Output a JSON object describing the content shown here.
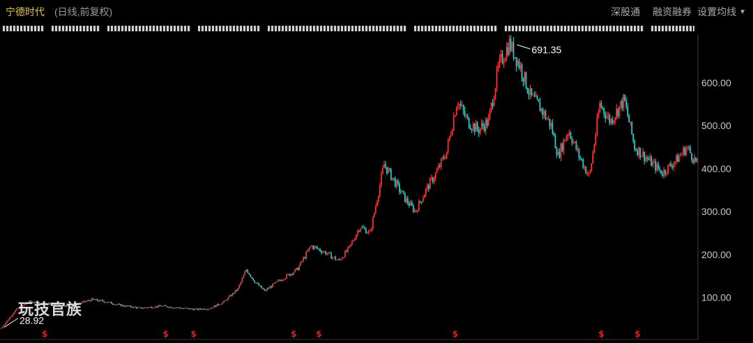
{
  "header": {
    "title": "宁德时代",
    "subtitle": "(日线,前复权)",
    "menu": [
      "深股通",
      "融资融券"
    ],
    "settings_label": "设置均线"
  },
  "watermark": "玩技官族",
  "colors": {
    "up": "#ff4040",
    "down": "#2dd8d8",
    "axis": "#444444",
    "text": "#c8c8c8"
  },
  "chart_data": {
    "type": "candlestick",
    "title": "宁德时代",
    "subtitle": "(日线,前复权)",
    "ylim": [
      20,
      700
    ],
    "y_ticks": [
      100,
      200,
      300,
      400,
      500,
      600
    ],
    "y_tick_labels": [
      "100.00",
      "200.00",
      "300.00",
      "400.00",
      "500.00",
      "600.00"
    ],
    "grid": false,
    "annotations": [
      {
        "label": "691.35",
        "value": 691.35,
        "kind": "high"
      },
      {
        "label": "28.92",
        "value": 28.92,
        "kind": "low"
      }
    ],
    "marker_symbol": "$",
    "marker_count": 8,
    "x_range": [
      0,
      1000
    ],
    "markers_x": [
      62,
      236,
      276,
      420,
      456,
      652,
      862,
      914
    ],
    "series": [
      {
        "name": "close",
        "x": [
          0,
          20,
          40,
          70,
          100,
          130,
          150,
          170,
          200,
          230,
          260,
          280,
          300,
          320,
          340,
          352,
          365,
          378,
          400,
          425,
          445,
          465,
          485,
          500,
          515,
          530,
          550,
          565,
          580,
          595,
          610,
          625,
          640,
          655,
          670,
          685,
          700,
          715,
          730,
          745,
          760,
          775,
          790,
          800,
          815,
          830,
          845,
          860,
          875,
          895,
          910,
          930,
          950,
          970,
          985,
          1000
        ],
        "values": [
          28.92,
          70,
          90,
          85,
          80,
          95,
          90,
          82,
          75,
          80,
          75,
          72,
          75,
          90,
          120,
          165,
          135,
          115,
          140,
          165,
          220,
          205,
          185,
          215,
          265,
          250,
          410,
          370,
          330,
          300,
          350,
          390,
          440,
          560,
          510,
          490,
          510,
          640,
          691.35,
          640,
          570,
          540,
          500,
          430,
          490,
          430,
          380,
          550,
          510,
          560,
          450,
          420,
          390,
          420,
          450,
          410
        ]
      }
    ]
  }
}
